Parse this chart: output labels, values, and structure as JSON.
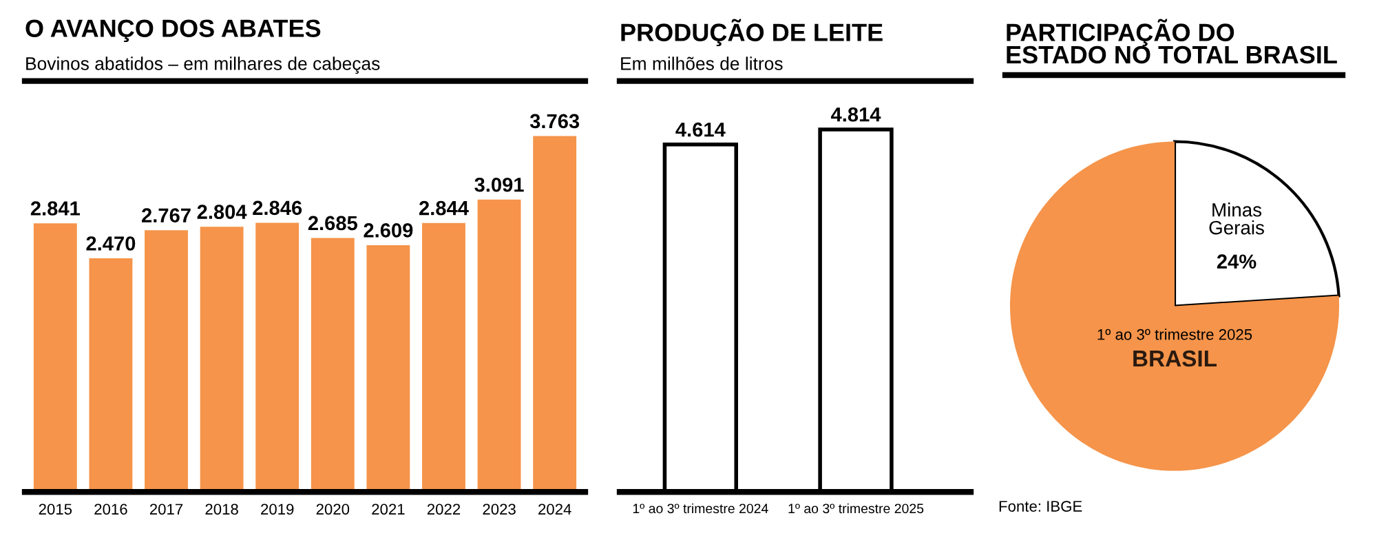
{
  "chart_data": [
    {
      "type": "bar",
      "title": "O AVANÇO DOS ABATES",
      "subtitle": "Bovinos abatidos – em milhares de cabeças",
      "categories": [
        "2015",
        "2016",
        "2017",
        "2018",
        "2019",
        "2020",
        "2021",
        "2022",
        "2023",
        "2024"
      ],
      "series": [
        {
          "color": "#f5944a",
          "values": [
            2841,
            2470,
            2767,
            2804,
            2846,
            2685,
            2609,
            2844,
            3091,
            3763
          ],
          "value_labels": [
            "2.841",
            "2.470",
            "2.767",
            "2.804",
            "2.846",
            "2.685",
            "2.609",
            "2.844",
            "3.091",
            "3.763"
          ]
        }
      ],
      "ylim": [
        0,
        4300
      ],
      "tick_labels": "x"
    },
    {
      "type": "bar",
      "title": "PRODUÇÃO DE LEITE",
      "subtitle": "Em milhões de litros",
      "categories": [
        "1º ao 3º trimestre 2024",
        "1º ao 3º trimestre 2025"
      ],
      "series": [
        {
          "color": "#ffffff",
          "values": [
            4614,
            4814
          ],
          "value_labels": [
            "4.614",
            "4.814"
          ]
        }
      ],
      "ylim": [
        0,
        5400
      ],
      "tick_labels": "x"
    },
    {
      "type": "pie",
      "title": "PARTICIPAÇÃO DO\nESTADO NO TOTAL BRASIL",
      "categories": [
        "Minas\nGerais",
        "BRASIL"
      ],
      "values": [
        24,
        76
      ],
      "colors": [
        "#ffffff",
        "#f5944a"
      ],
      "value_labels": [
        "24%",
        null
      ],
      "annotations": [
        "1º ao 3º trimestre 2025",
        "Fonte: IBGE"
      ]
    }
  ]
}
